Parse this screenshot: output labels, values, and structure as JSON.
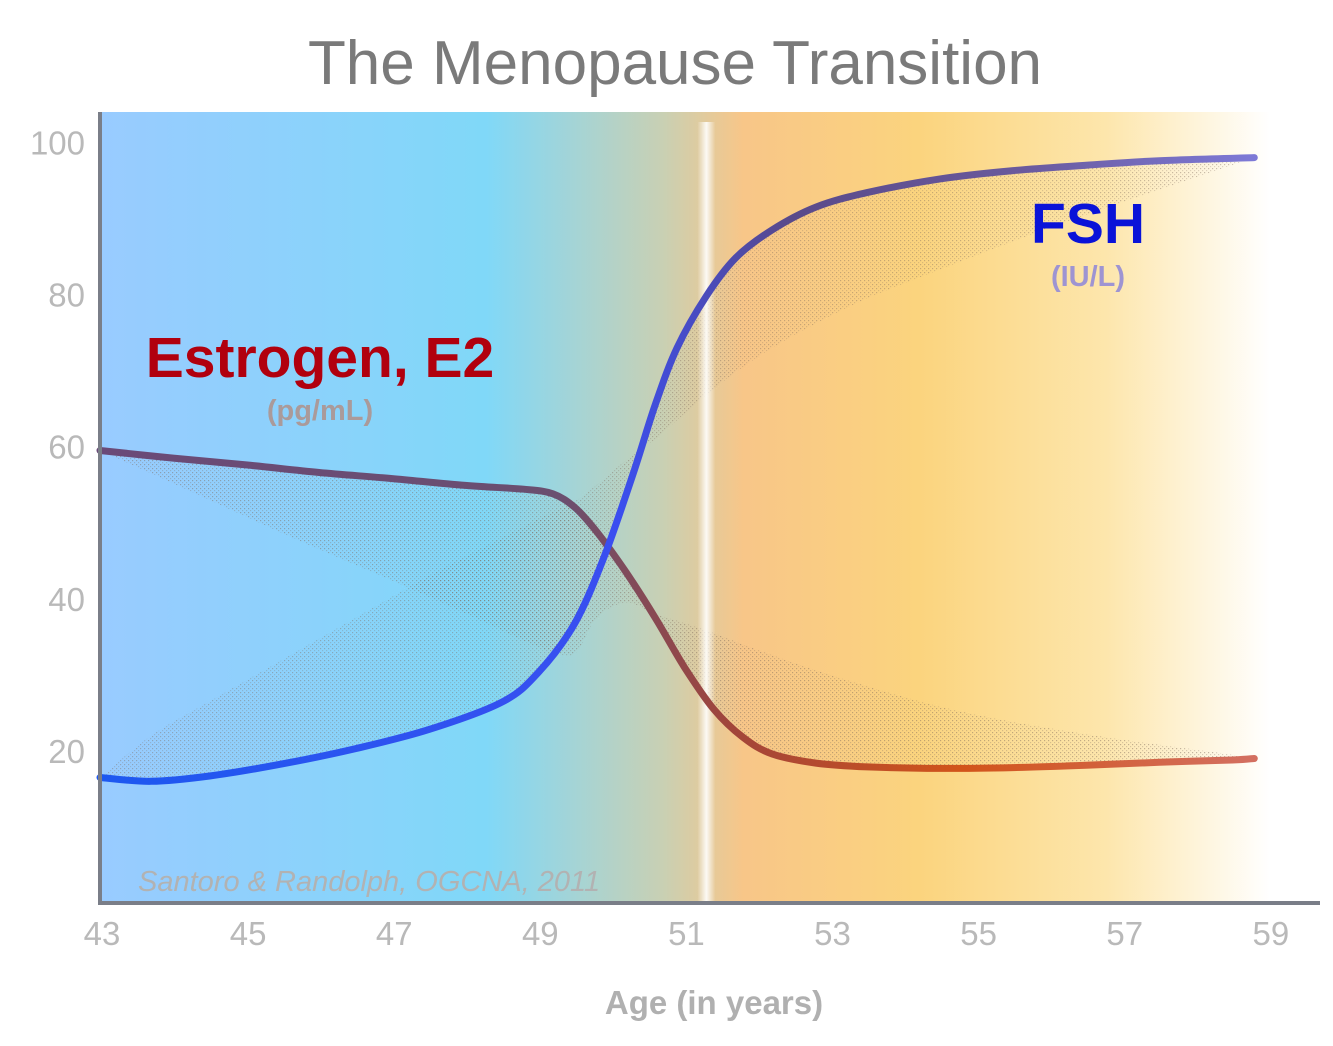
{
  "chart_data": {
    "type": "line",
    "title": "The Menopause Transition",
    "xlabel": "Age (in years)",
    "ylabel": "",
    "xlim": [
      43,
      59.7
    ],
    "ylim": [
      0,
      104
    ],
    "x_ticks": [
      43,
      45,
      47,
      49,
      51,
      53,
      55,
      57,
      59
    ],
    "y_ticks": [
      20,
      40,
      60,
      80,
      100
    ],
    "source": "Santoro & Randolph, OGCNA, 2011",
    "final_menstrual_period_age": 51.3,
    "background_colors": {
      "start": "#99cbff",
      "mid": "#80d8f8",
      "warm": "#f8c688",
      "end": "#ffffff"
    },
    "series": [
      {
        "name": "Estrogen, E2",
        "unit": "(pg/mL)",
        "label_color": "#b1000e",
        "unit_color": "#aa9a9a",
        "line_color_start": "#6a4a78",
        "line_color_end": "#d36f60",
        "x": [
          43,
          44,
          45,
          46,
          47,
          48,
          48.8,
          49.2,
          49.5,
          49.8,
          50.2,
          50.6,
          51,
          51.4,
          51.8,
          52.2,
          52.8,
          53.5,
          54.5,
          55.5,
          56.5,
          57.5,
          58.5,
          58.8
        ],
        "values": [
          59.5,
          58.5,
          57.6,
          56.6,
          55.8,
          54.9,
          54.4,
          53.8,
          52.0,
          48.8,
          43.5,
          37.5,
          31.0,
          25.5,
          21.8,
          19.6,
          18.4,
          17.9,
          17.7,
          17.8,
          18.1,
          18.5,
          18.8,
          19.0
        ],
        "band_lower": [
          59.5,
          55.2,
          50.8,
          46.5,
          42.4,
          38.1,
          34.5,
          33.0,
          32.8,
          37.5,
          39.5,
          38.0,
          36.8,
          35.5,
          34.0,
          32.6,
          30.6,
          28.5,
          25.8,
          23.8,
          22.2,
          20.8,
          19.5,
          19.0
        ]
      },
      {
        "name": "FSH",
        "unit": "(IU/L)",
        "label_color": "#0a13d8",
        "unit_color": "#9e94d2",
        "line_color_start": "#1d58f0",
        "line_color_end": "#7d79d6",
        "x": [
          43,
          43.7,
          44.5,
          45.5,
          46.5,
          47.5,
          48.5,
          49.0,
          49.5,
          49.9,
          50.3,
          50.6,
          50.9,
          51.3,
          51.7,
          52.2,
          52.8,
          53.5,
          54.5,
          55.5,
          56.5,
          57.5,
          58.8
        ],
        "values": [
          16.5,
          16.0,
          16.7,
          18.3,
          20.3,
          22.8,
          26.4,
          30.3,
          36.8,
          45.5,
          56.5,
          65.5,
          73.0,
          79.8,
          84.8,
          88.5,
          91.5,
          93.4,
          95.2,
          96.3,
          97.0,
          97.6,
          98.0
        ],
        "band_upper": [
          16.5,
          22.0,
          26.5,
          32.0,
          37.5,
          43.0,
          48.0,
          50.5,
          52.8,
          55.8,
          59.0,
          61.0,
          63.5,
          66.8,
          69.8,
          73.0,
          76.2,
          79.5,
          83.3,
          87.0,
          90.5,
          93.8,
          98.0
        ]
      }
    ]
  }
}
